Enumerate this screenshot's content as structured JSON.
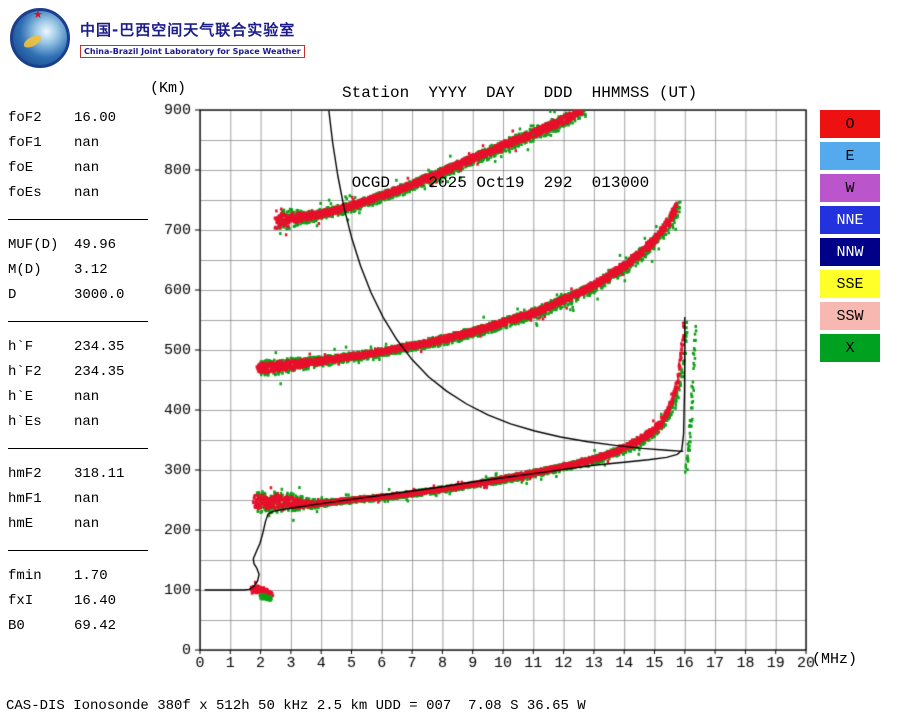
{
  "header": {
    "logo": {
      "title_cn": "中国-巴西空间天气联合实验室",
      "title_en": "China-Brazil Joint Laboratory for Space Weather"
    },
    "station_line1": "Station  YYYY  DAY   DDD  HHMMSS (UT)",
    "station_line2": " OCGD    2025 Oct19  292  013000"
  },
  "parameters": {
    "groups": [
      {
        "rows": [
          [
            "foF2",
            "16.00"
          ],
          [
            "foF1",
            "nan"
          ],
          [
            "foE",
            "nan"
          ],
          [
            "foEs",
            "nan"
          ]
        ]
      },
      {
        "rows": [
          [
            "MUF(D)",
            "49.96"
          ],
          [
            "M(D)",
            "3.12"
          ],
          [
            "D",
            "3000.0"
          ]
        ]
      },
      {
        "rows": [
          [
            "h`F",
            "234.35"
          ],
          [
            "h`F2",
            "234.35"
          ],
          [
            "h`E",
            "nan"
          ],
          [
            "h`Es",
            "nan"
          ]
        ]
      },
      {
        "rows": [
          [
            "hmF2",
            "318.11"
          ],
          [
            "hmF1",
            "nan"
          ],
          [
            "hmE",
            "nan"
          ]
        ]
      },
      {
        "rows": [
          [
            "fmin",
            "1.70"
          ],
          [
            "fxI",
            "16.40"
          ],
          [
            "B0",
            "69.42"
          ]
        ]
      }
    ]
  },
  "legend": {
    "items": [
      {
        "label": "O",
        "color": "#ee1111",
        "text": "#000000"
      },
      {
        "label": "E",
        "color": "#55aaee",
        "text": "#000000"
      },
      {
        "label": "W",
        "color": "#bb55cc",
        "text": "#000000"
      },
      {
        "label": "NNE",
        "color": "#2233dd",
        "text": "#ffffff"
      },
      {
        "label": "NNW",
        "color": "#000088",
        "text": "#ffffff"
      },
      {
        "label": "SSE",
        "color": "#ffff2a",
        "text": "#000000"
      },
      {
        "label": "SSW",
        "color": "#f6b8b0",
        "text": "#000000"
      },
      {
        "label": "X",
        "color": "#00a020",
        "text": "#000000"
      }
    ]
  },
  "footer": {
    "status_line": "CAS-DIS Ionosonde 380f x 512h 50 kHz 2.5 km UDD = 007  7.08 S 36.65 W"
  },
  "chart_data": {
    "type": "scatter",
    "title": "Ionogram OCGD 2025 Oct19 292 013000 UT",
    "xlabel": "(MHz)",
    "ylabel": "(Km)",
    "xlim": [
      0,
      20
    ],
    "ylim": [
      0,
      900
    ],
    "x_ticks": [
      0,
      1,
      2,
      3,
      4,
      5,
      6,
      7,
      8,
      9,
      10,
      11,
      12,
      13,
      14,
      15,
      16,
      17,
      18,
      19,
      20
    ],
    "y_ticks": [
      0,
      100,
      200,
      300,
      400,
      500,
      600,
      700,
      800,
      900
    ],
    "grid": {
      "x_step": 1,
      "y_step": 50
    },
    "legend_position": "right",
    "colors": {
      "red": "#e8102b",
      "green": "#0fa018"
    },
    "traces": [
      {
        "name": "F-trace-1st-hop",
        "mode": "both",
        "points": [
          [
            1.78,
            247,
            14
          ],
          [
            2.2,
            246,
            15
          ],
          [
            2.7,
            248,
            13
          ],
          [
            3.2,
            245,
            10
          ],
          [
            3.7,
            243,
            6
          ],
          [
            4.2,
            246,
            4
          ],
          [
            5,
            250,
            4
          ],
          [
            6,
            255,
            4
          ],
          [
            7,
            261,
            4
          ],
          [
            8,
            268,
            4
          ],
          [
            9,
            276,
            4
          ],
          [
            10,
            285,
            5
          ],
          [
            11,
            295,
            5
          ],
          [
            12,
            306,
            5
          ],
          [
            12.7,
            314,
            5
          ],
          [
            13.3,
            323,
            6
          ],
          [
            13.9,
            334,
            6
          ],
          [
            14.4,
            347,
            7
          ],
          [
            14.9,
            363,
            7
          ],
          [
            15.25,
            382,
            8
          ],
          [
            15.5,
            403,
            8
          ],
          [
            15.68,
            428,
            9
          ],
          [
            15.8,
            458,
            10
          ],
          [
            15.88,
            492,
            11
          ],
          [
            15.94,
            525,
            11
          ],
          [
            15.97,
            550,
            10
          ]
        ]
      },
      {
        "name": "F-trace-2nd-hop",
        "mode": "both",
        "points": [
          [
            1.9,
            470,
            9
          ],
          [
            2.3,
            471,
            11
          ],
          [
            2.8,
            474,
            10
          ],
          [
            3.3,
            477,
            8
          ],
          [
            3.9,
            481,
            7
          ],
          [
            4.6,
            486,
            6
          ],
          [
            5.4,
            492,
            6
          ],
          [
            6.2,
            499,
            6
          ],
          [
            7,
            507,
            6
          ],
          [
            7.8,
            515,
            7
          ],
          [
            8.6,
            525,
            7
          ],
          [
            9.4,
            536,
            7
          ],
          [
            10.2,
            549,
            7
          ],
          [
            11,
            562,
            8
          ],
          [
            11.7,
            577,
            8
          ],
          [
            12.4,
            592,
            8
          ],
          [
            13,
            608,
            8
          ],
          [
            13.6,
            626,
            9
          ],
          [
            14.1,
            644,
            9
          ],
          [
            14.6,
            664,
            9
          ],
          [
            15,
            684,
            10
          ],
          [
            15.3,
            703,
            10
          ],
          [
            15.55,
            722,
            11
          ],
          [
            15.72,
            738,
            11
          ]
        ]
      },
      {
        "name": "F-trace-3rd-hop",
        "mode": "both",
        "points": [
          [
            2.5,
            712,
            16
          ],
          [
            2.8,
            718,
            14
          ],
          [
            3.1,
            720,
            10
          ],
          [
            3.5,
            722,
            8
          ],
          [
            4,
            727,
            7
          ],
          [
            4.5,
            733,
            7
          ],
          [
            5,
            740,
            7
          ],
          [
            5.5,
            748,
            7
          ],
          [
            6,
            757,
            7
          ],
          [
            6.5,
            766,
            7
          ],
          [
            7,
            776,
            7
          ],
          [
            7.5,
            786,
            8
          ],
          [
            8,
            797,
            8
          ],
          [
            8.5,
            808,
            8
          ],
          [
            9,
            819,
            8
          ],
          [
            9.5,
            830,
            8
          ],
          [
            10,
            841,
            8
          ],
          [
            10.5,
            851,
            8
          ],
          [
            11,
            861,
            9
          ],
          [
            11.5,
            872,
            9
          ],
          [
            12,
            883,
            9
          ],
          [
            12.35,
            892,
            9
          ],
          [
            12.6,
            899,
            8
          ]
        ]
      },
      {
        "name": "E-region-echo",
        "mode": "red",
        "points": [
          [
            1.7,
            100,
            7
          ],
          [
            1.85,
            102,
            9
          ],
          [
            2.0,
            100,
            9
          ],
          [
            2.15,
            97,
            7
          ],
          [
            2.28,
            94,
            5
          ],
          [
            2.4,
            92,
            4
          ]
        ]
      },
      {
        "name": "E-region-echo-x",
        "mode": "green",
        "points": [
          [
            2.0,
            90,
            4
          ],
          [
            2.2,
            87,
            3
          ],
          [
            2.35,
            85,
            3
          ]
        ]
      },
      {
        "name": "x-mode-asymptote-tail",
        "mode": "green",
        "points": [
          [
            16.05,
            300,
            5
          ],
          [
            16.12,
            335,
            7
          ],
          [
            16.2,
            385,
            9
          ],
          [
            16.27,
            445,
            10
          ],
          [
            16.32,
            500,
            10
          ],
          [
            16.35,
            535,
            9
          ]
        ]
      }
    ],
    "curves": [
      {
        "name": "true-height-profile",
        "points": [
          [
            0.15,
            100
          ],
          [
            0.9,
            100
          ],
          [
            1.45,
            100
          ],
          [
            1.62,
            101
          ],
          [
            1.78,
            106
          ],
          [
            1.9,
            115
          ],
          [
            1.95,
            126
          ],
          [
            1.88,
            136
          ],
          [
            1.78,
            144
          ],
          [
            1.76,
            152
          ],
          [
            1.85,
            163
          ],
          [
            1.98,
            178
          ],
          [
            2.08,
            196
          ],
          [
            2.16,
            214
          ],
          [
            2.24,
            226
          ],
          [
            2.4,
            231
          ],
          [
            2.7,
            234
          ],
          [
            3.2,
            238
          ],
          [
            4,
            244
          ],
          [
            5,
            251
          ],
          [
            6,
            258
          ],
          [
            7,
            265
          ],
          [
            8,
            272
          ],
          [
            9,
            280
          ],
          [
            10,
            287
          ],
          [
            11,
            294
          ],
          [
            12,
            301
          ],
          [
            13,
            308
          ],
          [
            14,
            313
          ],
          [
            14.8,
            317
          ],
          [
            15.4,
            321
          ],
          [
            15.75,
            326
          ],
          [
            15.9,
            333
          ],
          [
            15.96,
            360
          ],
          [
            15.99,
            430
          ],
          [
            16.0,
            500
          ],
          [
            16.0,
            555
          ]
        ]
      },
      {
        "name": "muf-transmission-curve",
        "points": [
          [
            4.25,
            900
          ],
          [
            4.38,
            845
          ],
          [
            4.55,
            790
          ],
          [
            4.75,
            738
          ],
          [
            5.0,
            688
          ],
          [
            5.3,
            640
          ],
          [
            5.65,
            595
          ],
          [
            6.05,
            554
          ],
          [
            6.5,
            517
          ],
          [
            7.0,
            484
          ],
          [
            7.55,
            455
          ],
          [
            8.15,
            431
          ],
          [
            8.8,
            410
          ],
          [
            9.5,
            392
          ],
          [
            10.25,
            377
          ],
          [
            11.05,
            365
          ],
          [
            11.9,
            355
          ],
          [
            12.8,
            347
          ],
          [
            13.7,
            341
          ],
          [
            14.6,
            336
          ],
          [
            15.4,
            333
          ],
          [
            15.95,
            331
          ]
        ]
      }
    ]
  }
}
